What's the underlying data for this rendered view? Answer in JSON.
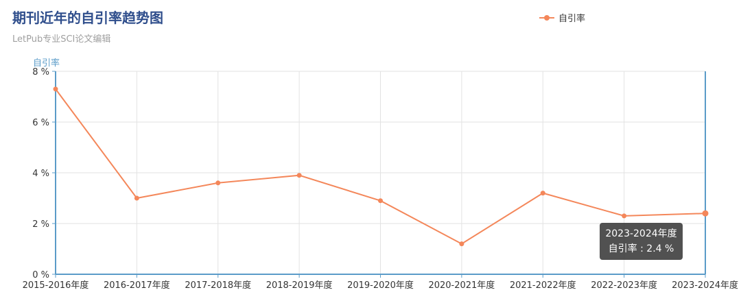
{
  "title": "期刊近年的自引率趋势图",
  "subtitle": "LetPub专业SCI论文编辑",
  "legend": {
    "label": "自引率"
  },
  "tooltip": {
    "category": "2023-2024年度",
    "series_label": "自引率",
    "value_text": "2.4 %"
  },
  "colors": {
    "series": "#f4875a",
    "axis": "#5a9bc8",
    "grid": "#e2e2e2"
  },
  "chart_data": {
    "type": "line",
    "title": "期刊近年的自引率趋势图",
    "subtitle": "LetPub专业SCI论文编辑",
    "ylabel": "自引率",
    "xlabel": "",
    "ylim": [
      0,
      8
    ],
    "yticks": [
      "0 %",
      "2 %",
      "4 %",
      "6 %",
      "8 %"
    ],
    "categories": [
      "2015-2016年度",
      "2016-2017年度",
      "2017-2018年度",
      "2018-2019年度",
      "2019-2020年度",
      "2020-2021年度",
      "2021-2022年度",
      "2022-2023年度",
      "2023-2024年度"
    ],
    "series": [
      {
        "name": "自引率",
        "values": [
          7.3,
          3.0,
          3.6,
          3.9,
          2.9,
          1.2,
          3.2,
          2.3,
          2.4
        ]
      }
    ],
    "grid": true,
    "legend_position": "top-right"
  }
}
